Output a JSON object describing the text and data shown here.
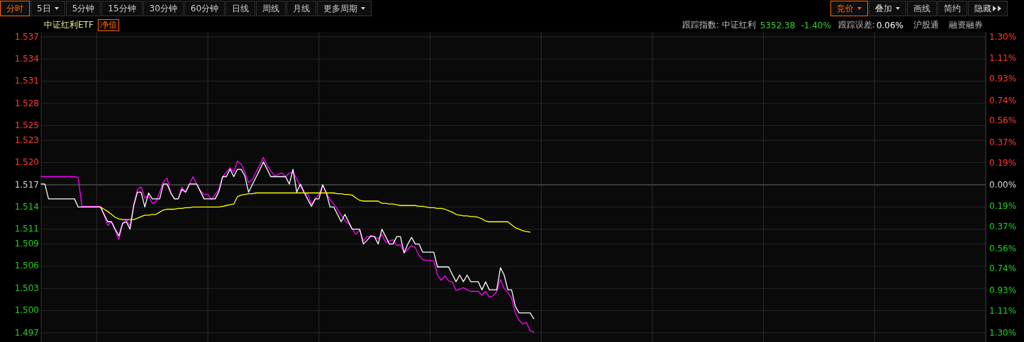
{
  "chart_data": {
    "type": "line",
    "title": "中证红利ETF",
    "annotations": [
      "分时",
      "5日",
      "5分钟",
      "15分钟",
      "30分钟",
      "60分钟",
      "日线",
      "周线",
      "月线",
      "更多周期",
      "竞价",
      "叠加",
      "画线",
      "简约",
      "隐藏",
      "净值",
      "跟踪指数: 中证红利",
      "5352.38",
      "-1.40%",
      "跟踪误差:",
      "0.06%",
      "沪股通",
      "融资融券"
    ],
    "categories": [
      null,
      null,
      null,
      null,
      null,
      null,
      null,
      null,
      null,
      null,
      null,
      null,
      null,
      null,
      null,
      null,
      null,
      null,
      null,
      null,
      null,
      null,
      null,
      null,
      null,
      null,
      null,
      null,
      null,
      null,
      null,
      null,
      null,
      null,
      null,
      null,
      null,
      null,
      null,
      null,
      null,
      null,
      null,
      null,
      null,
      null,
      null,
      null,
      null,
      null,
      null,
      null,
      null,
      null,
      null,
      null,
      null,
      null,
      null,
      null,
      null,
      null,
      null,
      null,
      null,
      null,
      null,
      null,
      null,
      null,
      null,
      null,
      null,
      null,
      null,
      null,
      null,
      null,
      null,
      null,
      null,
      null,
      null,
      null,
      null,
      null,
      null,
      null,
      null,
      null,
      null,
      null,
      null,
      null,
      null,
      null,
      null,
      null,
      null,
      null,
      null,
      null,
      null,
      null,
      null,
      null,
      null,
      null,
      null,
      null,
      null,
      null,
      null,
      null,
      null,
      null,
      null,
      null,
      null,
      null,
      null,
      null,
      null,
      null,
      null,
      null,
      null,
      null,
      null,
      null,
      null,
      null,
      null,
      null,
      null,
      null,
      null,
      null,
      null,
      null,
      null,
      null,
      null,
      null,
      null,
      null,
      null,
      null,
      null,
      null,
      null,
      null,
      null,
      null,
      null,
      null,
      null,
      null,
      null,
      null,
      null,
      null,
      null,
      null,
      null,
      null,
      null,
      null,
      null,
      null,
      null,
      null,
      null,
      null,
      null,
      null,
      null,
      null,
      null,
      null,
      null,
      null,
      null,
      null,
      null,
      null,
      null,
      null,
      null,
      null,
      null,
      null,
      null,
      null,
      null,
      null,
      null,
      null,
      null,
      null,
      null,
      null,
      null,
      null,
      null,
      null,
      null,
      null,
      null,
      null,
      null,
      null,
      null,
      null,
      null,
      null,
      null,
      null,
      null,
      null,
      null,
      null,
      null,
      null,
      null,
      null,
      null,
      null,
      null,
      null,
      null,
      null,
      null,
      null,
      null,
      null,
      null,
      null,
      null,
      null,
      null,
      null,
      null,
      null,
      null,
      null,
      null,
      null,
      null,
      null,
      null,
      null,
      null,
      null,
      null,
      null
    ],
    "ylim": [
      1.497,
      1.537
    ],
    "yticks": [
      1.497,
      {
        "value": 1.5,
        "label": "1.500"
      },
      1.503,
      1.506,
      1.509,
      1.511,
      1.514,
      1.517,
      {
        "value": 1.52,
        "label": "1.520"
      },
      1.523,
      1.525,
      1.528,
      1.531,
      1.534,
      1.537
    ],
    "y2lim": [
      -1.3,
      1.3
    ],
    "y2ticks": [
      {
        "value": -1.3,
        "label": "1.30%"
      },
      {
        "value": -1.11,
        "label": "1.11%"
      },
      {
        "value": -0.93,
        "label": "0.93%"
      },
      {
        "value": -0.74,
        "label": "0.74%"
      },
      {
        "value": -0.56,
        "label": "0.56%"
      },
      {
        "value": -0.37,
        "label": "0.37%"
      },
      {
        "value": -0.19,
        "label": "0.19%"
      },
      {
        "value": 0,
        "label": "0.00%"
      },
      {
        "value": 0.19,
        "label": "0.19%"
      },
      {
        "value": 0.37,
        "label": "0.37%"
      },
      {
        "value": 0.56,
        "label": "0.56%"
      },
      {
        "value": 0.74,
        "label": "0.74%"
      },
      {
        "value": 0.93,
        "label": "0.93%"
      },
      {
        "value": 1.11,
        "label": "1.11%"
      },
      {
        "value": 1.3,
        "label": "1.30%"
      }
    ],
    "grid": true,
    "ref_lines": [
      {
        "axis": "y",
        "value": 1.517,
        "color": "#3a3a3a"
      }
    ],
    "series": [
      {
        "color": "#ff00ff",
        "values": [
          1.5181,
          1.5181,
          1.5181,
          1.5181,
          1.5181,
          1.5181,
          1.5181,
          1.5181,
          1.5181,
          1.5181,
          1.518,
          1.5141,
          1.5141,
          1.5141,
          1.5141,
          1.5141,
          1.5141,
          1.5128,
          1.5115,
          1.512,
          1.5108,
          1.5096,
          1.5118,
          1.5123,
          1.5114,
          1.5143,
          1.5164,
          1.5167,
          1.5152,
          1.5155,
          1.5145,
          1.5147,
          1.516,
          1.5174,
          1.5179,
          1.5159,
          1.5151,
          1.5151,
          1.5167,
          1.516,
          1.517,
          1.5181,
          1.5171,
          1.5162,
          1.5157,
          1.5157,
          1.515,
          1.5157,
          1.5164,
          1.5181,
          1.5187,
          1.5193,
          1.5187,
          1.5202,
          1.5198,
          1.5187,
          1.5173,
          1.5177,
          1.5187,
          1.5197,
          1.5207,
          1.5196,
          1.5189,
          1.5182,
          1.5184,
          1.5186,
          1.5181,
          1.5186,
          1.5187,
          1.5178,
          1.5168,
          1.5159,
          1.5157,
          1.5144,
          1.5151,
          1.5157,
          1.5169,
          1.5159,
          1.515,
          1.5144,
          1.5137,
          1.5129,
          1.5121,
          1.5118,
          1.511,
          1.5103,
          1.5109,
          1.5094,
          1.51,
          1.51,
          1.51,
          1.5097,
          1.5103,
          1.5092,
          1.5094,
          1.5096,
          1.5088,
          1.5089,
          1.5078,
          1.5083,
          1.5088,
          1.5085,
          1.5075,
          1.5069,
          1.5068,
          1.5068,
          1.5067,
          1.5048,
          1.5041,
          1.5047,
          1.504,
          1.5039,
          1.5027,
          1.5029,
          1.5031,
          1.5028,
          1.5026,
          1.5026,
          1.5026,
          1.5021,
          1.5026,
          1.5018,
          1.502,
          1.5026,
          1.5042,
          1.503,
          1.5024,
          1.5017,
          1.4997,
          1.4987,
          1.4982,
          1.4984,
          1.4973,
          1.4971,
          null,
          null,
          null,
          null,
          null,
          null,
          null,
          null,
          null,
          null,
          null,
          null,
          null,
          null,
          null,
          null,
          null,
          null,
          null,
          null,
          null,
          null,
          null,
          null,
          null,
          null,
          null,
          null,
          null,
          null,
          null,
          null,
          null,
          null,
          null,
          null,
          null,
          null,
          null,
          null,
          null,
          null,
          null,
          null,
          null,
          null,
          null,
          null,
          null,
          null,
          null,
          null,
          null,
          null,
          null,
          null,
          null,
          null,
          null,
          null,
          null,
          null,
          null,
          null,
          null,
          null,
          null,
          null,
          null,
          null,
          null,
          null,
          null,
          null,
          null,
          null,
          null,
          null,
          null,
          null,
          null,
          null,
          null,
          null,
          null,
          null,
          null,
          null,
          null,
          null,
          null,
          null,
          null,
          null,
          null,
          null,
          null,
          null,
          null,
          null,
          null,
          null,
          null,
          null,
          null,
          null,
          null,
          null,
          null,
          null,
          null,
          null,
          null,
          null,
          null,
          null,
          null,
          null,
          null,
          null,
          null,
          null
        ]
      },
      {
        "color": "#ffffff",
        "values": [
          1.5171,
          1.5171,
          1.5151,
          1.5151,
          1.5151,
          1.5151,
          1.5151,
          1.5151,
          1.5151,
          1.5151,
          1.514,
          1.514,
          1.514,
          1.514,
          1.514,
          1.514,
          1.514,
          1.513,
          1.512,
          1.512,
          1.511,
          1.5101,
          1.5118,
          1.512,
          1.511,
          1.5142,
          1.516,
          1.516,
          1.514,
          1.5159,
          1.5151,
          1.5151,
          1.5151,
          1.5171,
          1.5171,
          1.5159,
          1.5151,
          1.5151,
          1.5164,
          1.516,
          1.5171,
          1.5171,
          1.5171,
          1.5161,
          1.5151,
          1.5151,
          1.5151,
          1.5151,
          1.5161,
          1.5181,
          1.5181,
          1.5191,
          1.5181,
          1.5191,
          1.5191,
          1.5182,
          1.516,
          1.517,
          1.518,
          1.519,
          1.5201,
          1.5191,
          1.5181,
          1.5181,
          1.5181,
          1.5181,
          1.5181,
          1.5171,
          1.5191,
          1.516,
          1.5171,
          1.516,
          1.515,
          1.5141,
          1.5151,
          1.5151,
          1.517,
          1.5159,
          1.514,
          1.514,
          1.513,
          1.512,
          1.513,
          1.512,
          1.511,
          1.511,
          1.511,
          1.509,
          1.5095,
          1.5101,
          1.51,
          1.509,
          1.511,
          1.51,
          1.509,
          1.509,
          1.51,
          1.51,
          1.5078,
          1.509,
          1.5099,
          1.509,
          1.509,
          1.5079,
          1.5079,
          1.5079,
          1.5079,
          1.5059,
          1.5059,
          1.5059,
          1.5059,
          1.5049,
          1.5039,
          1.5048,
          1.5039,
          1.5048,
          1.5039,
          1.5039,
          1.5039,
          1.5028,
          1.5039,
          1.5028,
          1.5028,
          1.5028,
          1.5058,
          1.5048,
          1.5028,
          1.5028,
          1.5006,
          1.4997,
          1.4997,
          1.4997,
          1.4997,
          1.4989,
          null,
          null,
          null,
          null,
          null,
          null,
          null,
          null,
          null,
          null,
          null,
          null,
          null,
          null,
          null,
          null,
          null,
          null,
          null,
          null,
          null,
          null,
          null,
          null,
          null,
          null,
          null,
          null,
          null,
          null,
          null,
          null,
          null,
          null,
          null,
          null,
          null,
          null,
          null,
          null,
          null,
          null,
          null,
          null,
          null,
          null,
          null,
          null,
          null,
          null,
          null,
          null,
          null,
          null,
          null,
          null,
          null,
          null,
          null,
          null,
          null,
          null,
          null,
          null,
          null,
          null,
          null,
          null,
          null,
          null,
          null,
          null,
          null,
          null,
          null,
          null,
          null,
          null,
          null,
          null,
          null,
          null,
          null,
          null,
          null,
          null,
          null,
          null,
          null,
          null,
          null,
          null,
          null,
          null,
          null,
          null,
          null,
          null,
          null,
          null,
          null,
          null,
          null,
          null,
          null,
          null,
          null,
          null,
          null,
          null,
          null,
          null,
          null,
          null,
          null,
          null,
          null,
          null,
          null,
          null,
          null,
          null
        ]
      },
      {
        "color": "#ffff00",
        "values": [
          null,
          null,
          null,
          null,
          null,
          null,
          null,
          null,
          null,
          null,
          null,
          null,
          null,
          null,
          null,
          null,
          1.514,
          1.5137,
          1.5134,
          1.513,
          1.5126,
          1.5124,
          1.5123,
          1.5123,
          1.5123,
          1.5123,
          1.5125,
          1.5127,
          1.5129,
          1.5129,
          1.513,
          1.513,
          1.5133,
          1.5136,
          1.5137,
          1.5137,
          1.5137,
          1.5138,
          1.5138,
          1.5139,
          1.5139,
          1.514,
          1.514,
          1.514,
          1.514,
          1.514,
          1.514,
          1.514,
          1.514,
          1.5141,
          1.5142,
          1.5143,
          1.5144,
          1.5154,
          1.5156,
          1.5157,
          1.5158,
          1.5158,
          1.5159,
          1.5159,
          1.5159,
          1.5159,
          1.5159,
          1.5159,
          1.5159,
          1.5159,
          1.5159,
          1.5159,
          1.5159,
          1.5159,
          1.5159,
          1.5159,
          1.5159,
          1.5159,
          1.5159,
          1.5159,
          1.5159,
          1.5159,
          1.5159,
          1.5159,
          1.5158,
          1.5158,
          1.5157,
          1.5157,
          1.5156,
          1.5152,
          1.5149,
          1.5148,
          1.5148,
          1.5148,
          1.5148,
          1.5148,
          1.5145,
          1.5145,
          1.5144,
          1.5144,
          1.5143,
          1.5142,
          1.5142,
          1.5142,
          1.5142,
          1.5142,
          1.5141,
          1.5141,
          1.514,
          1.5139,
          1.5139,
          1.5138,
          1.5138,
          1.5137,
          1.5135,
          1.5133,
          1.513,
          1.5129,
          1.5128,
          1.5128,
          1.5127,
          1.5127,
          1.5126,
          1.5124,
          1.5121,
          1.512,
          1.512,
          1.512,
          1.512,
          1.512,
          1.512,
          1.5116,
          1.5112,
          1.511,
          1.5108,
          1.5107,
          1.5106,
          null,
          null,
          null,
          null,
          null,
          null,
          null,
          null,
          null,
          null,
          null,
          null,
          null,
          null,
          null,
          null,
          null,
          null,
          null,
          null,
          null,
          null,
          null,
          null,
          null,
          null,
          null,
          null,
          null,
          null,
          null,
          null,
          null,
          null,
          null,
          null,
          null,
          null,
          null,
          null,
          null,
          null,
          null,
          null,
          null,
          null,
          null,
          null,
          null,
          null,
          null,
          null,
          null,
          null,
          null,
          null,
          null,
          null,
          null,
          null,
          null,
          null,
          null,
          null,
          null,
          null,
          null,
          null,
          null,
          null,
          null,
          null,
          null,
          null,
          null,
          null,
          null,
          null,
          null,
          null,
          null,
          null,
          null,
          null,
          null,
          null,
          null,
          null,
          null,
          null,
          null,
          null,
          null,
          null,
          null,
          null,
          null,
          null,
          null,
          null,
          null,
          null,
          null,
          null,
          null,
          null,
          null,
          null,
          null,
          null,
          null,
          null,
          null,
          null,
          null,
          null,
          null,
          null,
          null,
          null,
          null,
          null,
          null
        ]
      }
    ]
  }
}
